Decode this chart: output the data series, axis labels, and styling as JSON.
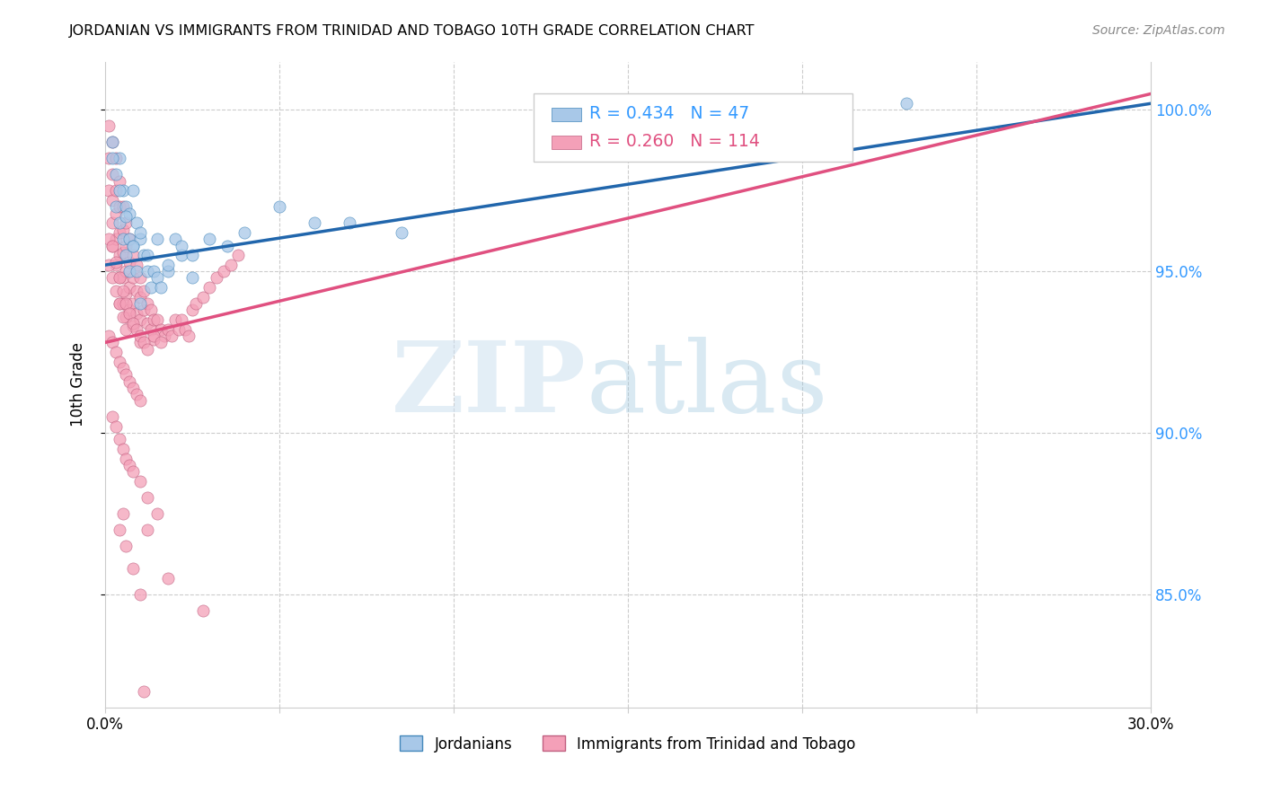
{
  "title": "JORDANIAN VS IMMIGRANTS FROM TRINIDAD AND TOBAGO 10TH GRADE CORRELATION CHART",
  "source": "Source: ZipAtlas.com",
  "ylabel": "10th Grade",
  "xlim": [
    0.0,
    0.3
  ],
  "ylim": [
    0.815,
    1.015
  ],
  "color_jordanian": "#a8c8e8",
  "color_trinidad": "#f4a0b8",
  "color_jordanian_line": "#2166ac",
  "color_trinidad_line": "#e05080",
  "color_r1": "#3399ff",
  "color_r2": "#e05080",
  "legend_r1": "R = 0.434",
  "legend_n1": "N = 47",
  "legend_r2": "R = 0.260",
  "legend_n2": "N = 114",
  "jord_line_x0": 0.0,
  "jord_line_y0": 0.952,
  "jord_line_x1": 0.3,
  "jord_line_y1": 1.002,
  "trin_line_x0": 0.0,
  "trin_line_y0": 0.928,
  "trin_line_x1": 0.3,
  "trin_line_y1": 1.005,
  "ytick_positions": [
    0.85,
    0.9,
    0.95,
    1.0
  ],
  "ytick_labels": [
    "85.0%",
    "90.0%",
    "95.0%",
    "100.0%"
  ],
  "grid_color": "#cccccc"
}
